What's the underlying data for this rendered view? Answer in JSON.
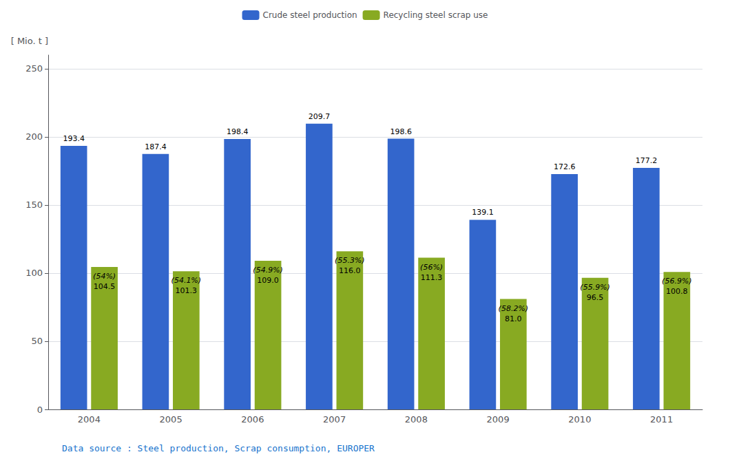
{
  "chart_data": {
    "type": "bar",
    "categories": [
      "2004",
      "2005",
      "2006",
      "2007",
      "2008",
      "2009",
      "2010",
      "2011"
    ],
    "series": [
      {
        "name": "Crude steel production",
        "color": "#3366CC",
        "values": [
          193.4,
          187.4,
          198.4,
          209.7,
          198.6,
          139.1,
          172.6,
          177.2
        ]
      },
      {
        "name": "Recycling steel scrap use",
        "color": "#88AA22",
        "values": [
          104.5,
          101.3,
          109.0,
          116.0,
          111.3,
          81.0,
          96.5,
          100.8
        ],
        "value_labels": [
          "104.5",
          "101.3",
          "109.0",
          "116.0",
          "111.3",
          "81.0",
          "96.5",
          "100.8"
        ],
        "share_labels": [
          "(54%)",
          "(54.1%)",
          "(54.9%)",
          "(55.3%)",
          "(56%)",
          "(58.2%)",
          "(55.9%)",
          "(56.9%)"
        ]
      }
    ],
    "ylabel": "[ Mio. t ]",
    "ylim": [
      0,
      260
    ],
    "yticks": [
      0,
      50,
      100,
      150,
      200,
      250
    ],
    "grid": true,
    "legend": "top",
    "data_labels": true,
    "annotations": [
      {
        "text": "Data source : Steel production, Scrap consumption, EUROPER",
        "color": "#1874CD"
      }
    ]
  }
}
